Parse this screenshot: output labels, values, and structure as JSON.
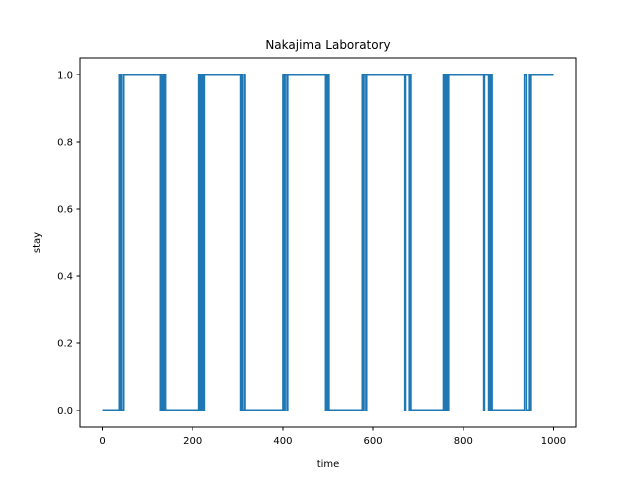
{
  "chart_data": {
    "type": "line",
    "title": "Nakajima Laboratory",
    "xlabel": "time",
    "ylabel": "stay",
    "xlim": [
      -50,
      1050
    ],
    "ylim": [
      -0.05,
      1.05
    ],
    "xticks": [
      0,
      200,
      400,
      600,
      800,
      1000
    ],
    "xtick_labels": [
      "0",
      "200",
      "400",
      "600",
      "800",
      "1000"
    ],
    "yticks": [
      0.0,
      0.2,
      0.4,
      0.6,
      0.8,
      1.0
    ],
    "ytick_labels": [
      "0.0",
      "0.2",
      "0.4",
      "0.6",
      "0.8",
      "1.0"
    ],
    "grid": false,
    "legend": false,
    "colors": {
      "series": "#1f77b4"
    },
    "series": [
      {
        "x": [
          0,
          37,
          37,
          39,
          39,
          41,
          41,
          43,
          43,
          47,
          47,
          49,
          49,
          128,
          128,
          130,
          130,
          132,
          132,
          134,
          134,
          136,
          136,
          138,
          138,
          140,
          140,
          213,
          213,
          215,
          215,
          217,
          217,
          219,
          219,
          222,
          222,
          224,
          224,
          226,
          226,
          306,
          306,
          308,
          308,
          310,
          310,
          314,
          314,
          316,
          316,
          318,
          318,
          400,
          400,
          403,
          403,
          405,
          405,
          409,
          409,
          411,
          411,
          413,
          413,
          494,
          494,
          496,
          496,
          498,
          498,
          500,
          500,
          502,
          502,
          504,
          504,
          576,
          576,
          578,
          578,
          580,
          580,
          584,
          584,
          586,
          586,
          590,
          590,
          670,
          670,
          672,
          672,
          680,
          680,
          682,
          682,
          684,
          684,
          756,
          756,
          758,
          758,
          760,
          760,
          762,
          762,
          764,
          764,
          766,
          766,
          768,
          768,
          845,
          845,
          847,
          847,
          856,
          856,
          858,
          858,
          860,
          860,
          862,
          862,
          864,
          864,
          936,
          936,
          940,
          940,
          946,
          946,
          948,
          948,
          950,
          950,
          1000
        ],
        "y": [
          0,
          0,
          1,
          1,
          0,
          0,
          1,
          1,
          0,
          0,
          1,
          1,
          1,
          1,
          0,
          0,
          1,
          1,
          0,
          0,
          1,
          1,
          0,
          0,
          1,
          1,
          0,
          0,
          1,
          1,
          0,
          0,
          1,
          1,
          0,
          0,
          1,
          1,
          0,
          0,
          1,
          1,
          0,
          0,
          1,
          1,
          0,
          0,
          1,
          1,
          0,
          0,
          0,
          0,
          1,
          1,
          0,
          0,
          1,
          1,
          0,
          0,
          1,
          1,
          1,
          1,
          0,
          0,
          1,
          1,
          0,
          0,
          1,
          1,
          0,
          0,
          0,
          0,
          1,
          1,
          0,
          0,
          1,
          1,
          0,
          0,
          1,
          1,
          1,
          1,
          0,
          0,
          1,
          1,
          0,
          0,
          1,
          1,
          0,
          0,
          1,
          1,
          0,
          0,
          1,
          1,
          0,
          0,
          1,
          1,
          0,
          0,
          1,
          1,
          0,
          0,
          1,
          1,
          0,
          0,
          1,
          1,
          0,
          0,
          1,
          1,
          0,
          0,
          1,
          1,
          0,
          0,
          1,
          1,
          0,
          0,
          1,
          1
        ]
      }
    ]
  }
}
